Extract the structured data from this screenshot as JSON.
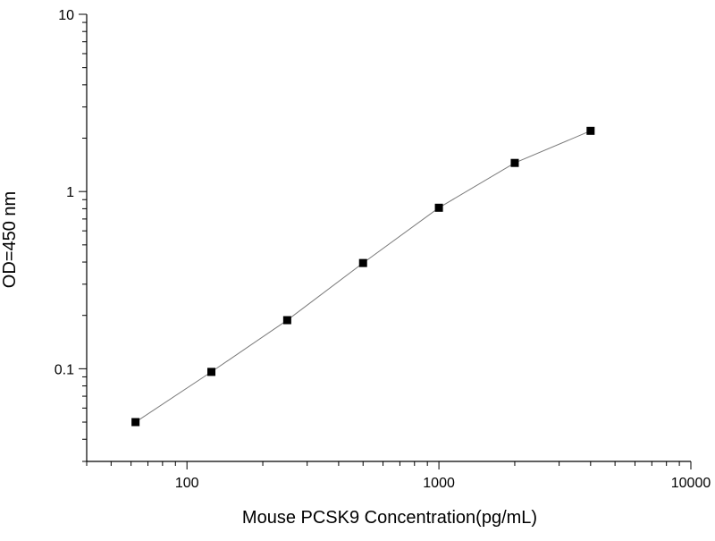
{
  "chart_data": {
    "type": "line",
    "title": "",
    "xlabel": "Mouse PCSK9 Concentration(pg/mL)",
    "ylabel": "OD=450 nm",
    "x_scale": "log",
    "y_scale": "log",
    "xlim": [
      40,
      10000
    ],
    "ylim": [
      0.03,
      10
    ],
    "x_ticks": [
      100,
      1000,
      10000
    ],
    "x_tick_labels": [
      "100",
      "1000",
      "10000"
    ],
    "y_ticks": [
      0.1,
      1,
      10
    ],
    "y_tick_labels": [
      "0.1",
      "1",
      "10"
    ],
    "grid": false,
    "legend": "none",
    "marker": "square",
    "series": [
      {
        "x": [
          62.5,
          125,
          250,
          500,
          1000,
          2000,
          4000
        ],
        "y": [
          0.05,
          0.096,
          0.188,
          0.395,
          0.81,
          1.45,
          2.2
        ],
        "color": "#000000"
      }
    ]
  }
}
